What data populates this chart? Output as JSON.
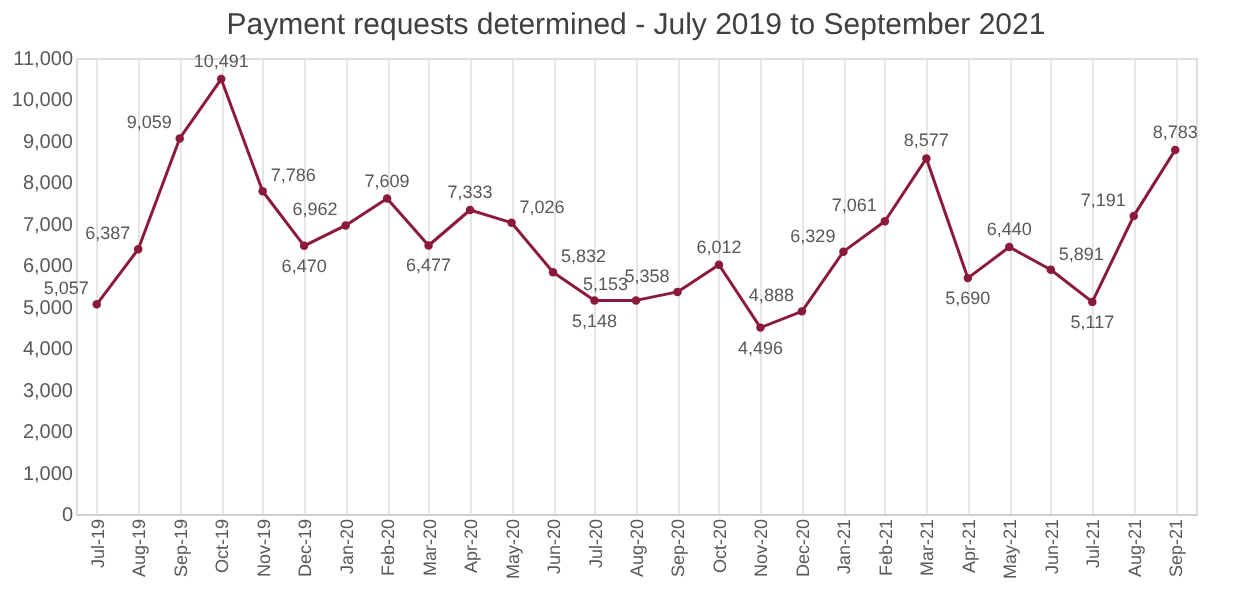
{
  "chart_data": {
    "type": "line",
    "title": "Payment requests determined - July 2019 to September 2021",
    "categories": [
      "Jul-19",
      "Aug-19",
      "Sep-19",
      "Oct-19",
      "Nov-19",
      "Dec-19",
      "Jan-20",
      "Feb-20",
      "Mar-20",
      "Apr-20",
      "May-20",
      "Jun-20",
      "Jul-20",
      "Aug-20",
      "Sep-20",
      "Oct-20",
      "Nov-20",
      "Dec-20",
      "Jan-21",
      "Feb-21",
      "Mar-21",
      "Apr-21",
      "May-21",
      "Jun-21",
      "Jul-21",
      "Aug-21",
      "Sep-21"
    ],
    "series": [
      {
        "color": "#8b1a3a",
        "values": [
          5057,
          6387,
          9059,
          10491,
          7786,
          6470,
          6962,
          7609,
          6477,
          7333,
          7026,
          5832,
          5148,
          5153,
          5358,
          6012,
          4496,
          4888,
          6329,
          7061,
          8577,
          5690,
          6440,
          5891,
          5117,
          7191,
          8783
        ],
        "value_labels": [
          "5,057",
          "6,387",
          "9,059",
          "10,491",
          "7,786",
          "6,470",
          "6,962",
          "7,609",
          "6,477",
          "7,333",
          "7,026",
          "5,832",
          "5,148",
          "5,153",
          "5,358",
          "6,012",
          "4,496",
          "4,888",
          "6,329",
          "7,061",
          "8,577",
          "5,690",
          "6,440",
          "5,891",
          "5,117",
          "7,191",
          "8,783"
        ]
      }
    ],
    "ylim": [
      0,
      11000
    ],
    "yticks": [
      0,
      {
        "value": 1000,
        "label": "1,000"
      },
      {
        "value": 2000,
        "label": "2,000"
      },
      {
        "value": 3000,
        "label": "3,000"
      },
      {
        "value": 4000,
        "label": "4,000"
      },
      {
        "value": 5000,
        "label": "5,000"
      },
      {
        "value": 6000,
        "label": "6,000"
      },
      {
        "value": 7000,
        "label": "7,000"
      },
      {
        "value": 8000,
        "label": "8,000"
      },
      {
        "value": 9000,
        "label": "9,000"
      },
      {
        "value": 10000,
        "label": "10,000"
      },
      {
        "value": 11000,
        "label": "11,000"
      }
    ],
    "grid": "x",
    "marker": "circle",
    "line_style": "solid"
  }
}
